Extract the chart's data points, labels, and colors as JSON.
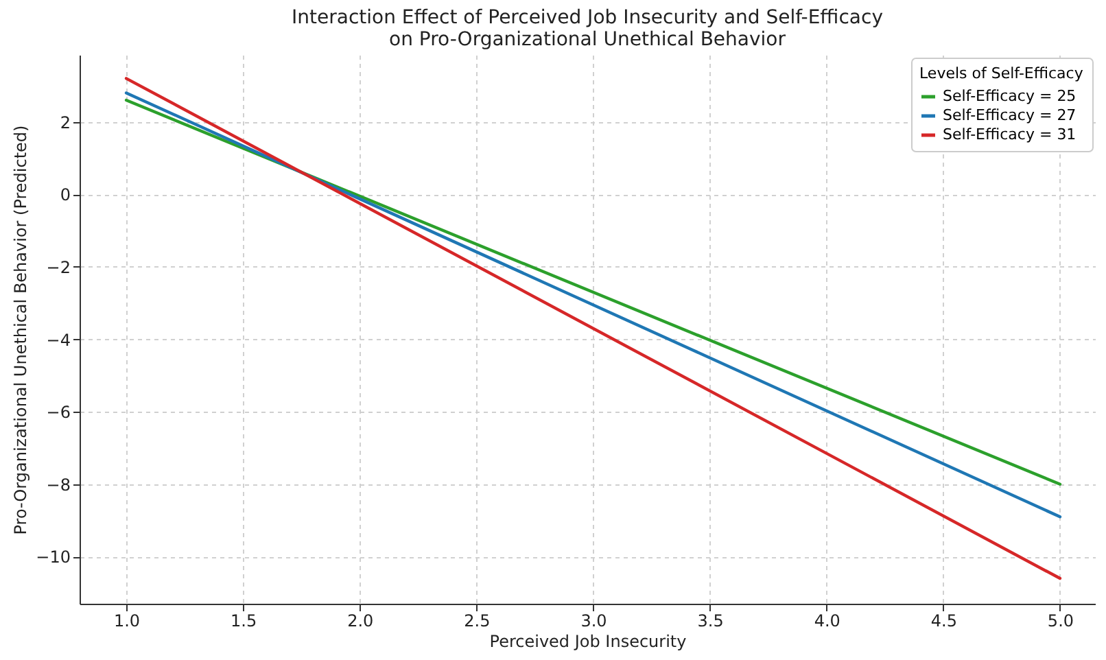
{
  "chart_data": {
    "type": "line",
    "title": "Interaction Effect of Perceived Job Insecurity and Self-Efficacy\non Pro-Organizational Unethical Behavior",
    "xlabel": "Perceived Job Insecurity",
    "ylabel": "Pro-Organizational Unethical Behavior (Predicted)",
    "legend_title": "Levels of Self-Efficacy",
    "x": [
      1.0,
      5.0
    ],
    "series": [
      {
        "name": "Self-Efficacy = 25",
        "color": "#2ca02c",
        "values": [
          2.6,
          -8.0
        ]
      },
      {
        "name": "Self-Efficacy = 27",
        "color": "#1f77b4",
        "values": [
          2.8,
          -8.9
        ]
      },
      {
        "name": "Self-Efficacy = 31",
        "color": "#d62728",
        "values": [
          3.2,
          -10.6
        ]
      }
    ],
    "xlim": [
      0.8,
      5.15
    ],
    "xticks": [
      {
        "value": 1,
        "label": "1.0"
      },
      1.5,
      {
        "value": 2,
        "label": "2.0"
      },
      2.5,
      {
        "value": 3,
        "label": "3.0"
      },
      3.5,
      {
        "value": 4,
        "label": "4.0"
      },
      4.5,
      {
        "value": 5,
        "label": "5.0"
      }
    ],
    "ylim": [
      -11.3,
      3.85
    ],
    "yticks": [
      -10,
      -8,
      -6,
      -4,
      -2,
      0,
      2
    ],
    "grid": true,
    "legend": "top right",
    "marker": "none",
    "line_style": "solid"
  }
}
